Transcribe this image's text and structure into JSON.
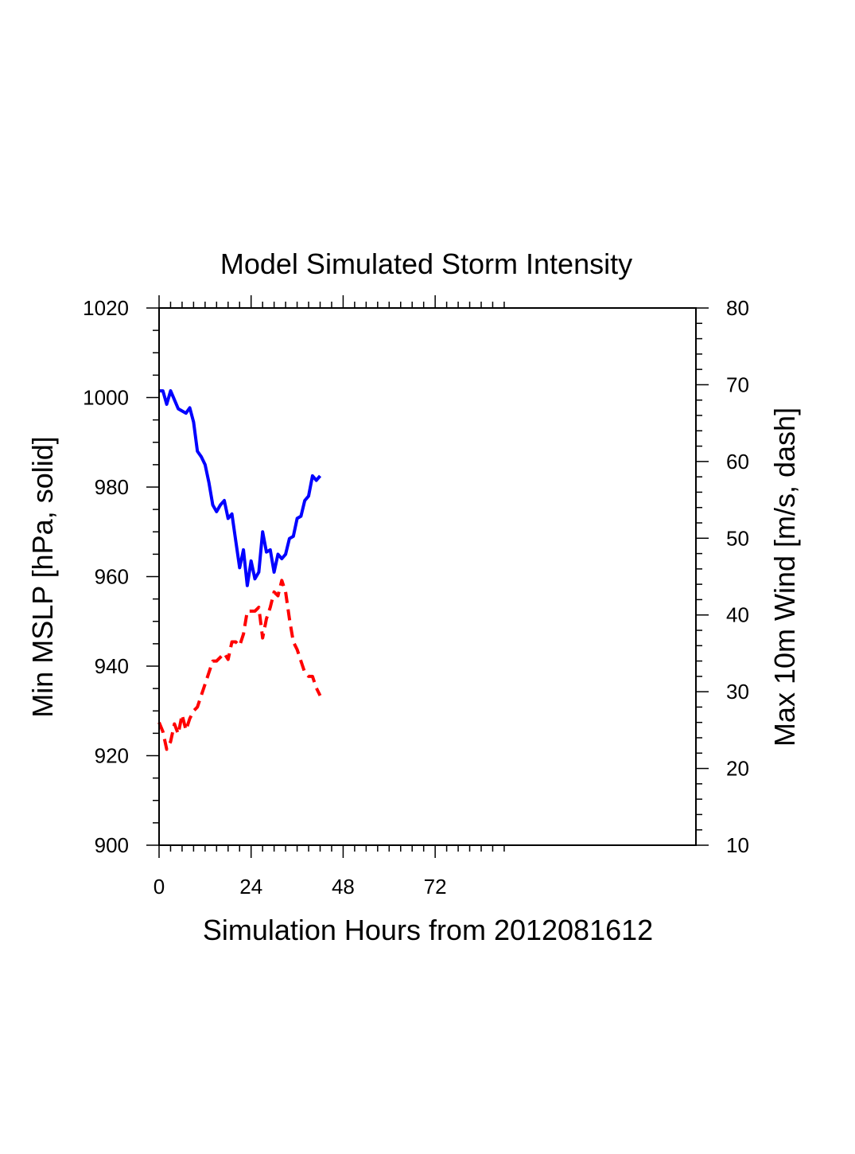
{
  "chart_data": {
    "type": "line",
    "title": "Model Simulated Storm Intensity",
    "xlabel": "Simulation Hours from 2012081612",
    "ylabel_left": "Min MSLP  [hPa, solid]",
    "ylabel_right": "Max 10m Wind  [m/s, dash]",
    "xlim": [
      0,
      140
    ],
    "ylim_left": [
      900,
      1020
    ],
    "ylim_right": [
      10,
      80
    ],
    "x_ticks": [
      0,
      24,
      48,
      72
    ],
    "y_ticks_left": [
      900,
      920,
      940,
      960,
      980,
      1000,
      1020
    ],
    "y_ticks_right": [
      10,
      20,
      30,
      40,
      50,
      60,
      70,
      80
    ],
    "grid": false,
    "series": [
      {
        "axis": "left",
        "style": "solid",
        "color": "#0000ff",
        "x": [
          0,
          1,
          2,
          3,
          4,
          5,
          6,
          7,
          8,
          9,
          10,
          11,
          12,
          13,
          14,
          15,
          16,
          17,
          18,
          19,
          20,
          21,
          22,
          23,
          24,
          25,
          26,
          27,
          28,
          29,
          30,
          31,
          32,
          33,
          34,
          35,
          36,
          37,
          38,
          39,
          40,
          41,
          42
        ],
        "values": [
          1001.5,
          1001.5,
          998.5,
          1001.5,
          999.5,
          997.5,
          997.0,
          996.5,
          997.7,
          994.5,
          988.0,
          986.8,
          985.0,
          981.0,
          976.0,
          974.5,
          976.0,
          977.0,
          973.0,
          974.0,
          968.0,
          962.0,
          966.0,
          958.0,
          963.5,
          959.5,
          961.0,
          970.0,
          965.5,
          966.0,
          961.0,
          965.0,
          964.0,
          965.0,
          968.5,
          969.0,
          973.0,
          973.5,
          977.0,
          978.0,
          982.5,
          981.5,
          982.5
        ]
      },
      {
        "axis": "right",
        "style": "dash",
        "color": "#ff0000",
        "x": [
          0,
          1,
          2,
          3,
          4,
          5,
          6,
          7,
          8,
          9,
          10,
          11,
          12,
          13,
          14,
          15,
          16,
          17,
          18,
          19,
          20,
          21,
          22,
          23,
          24,
          25,
          26,
          27,
          28,
          29,
          30,
          31,
          32,
          33,
          34,
          35,
          36,
          37,
          38,
          39,
          40,
          41,
          42
        ],
        "values": [
          26.0,
          24.8,
          22.5,
          23.5,
          25.8,
          24.5,
          27.0,
          25.0,
          26.5,
          27.5,
          28.0,
          29.5,
          31.0,
          32.5,
          34.0,
          34.0,
          34.5,
          35.0,
          34.2,
          36.5,
          36.5,
          36.0,
          37.5,
          40.5,
          40.5,
          40.5,
          41.0,
          37.0,
          39.5,
          41.0,
          43.0,
          42.5,
          44.5,
          43.0,
          39.5,
          36.5,
          35.5,
          34.0,
          32.5,
          32.0,
          32.0,
          30.5,
          29.5
        ]
      }
    ]
  }
}
